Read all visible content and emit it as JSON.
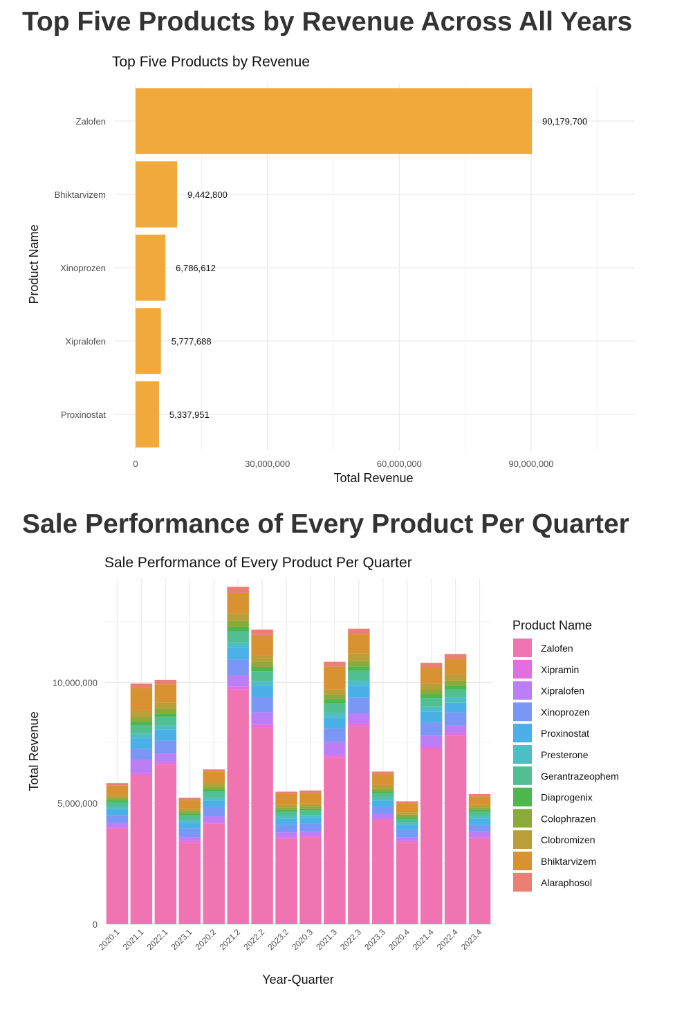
{
  "sections": {
    "top_title": "Top Five Products by Revenue Across All Years",
    "bottom_title": "Sale Performance of Every Product Per Quarter"
  },
  "chart_data": [
    {
      "type": "bar",
      "orientation": "horizontal",
      "title": "Top Five Products by Revenue",
      "xlabel": "Total Revenue",
      "ylabel": "Product Name",
      "categories": [
        "Zalofen",
        "Bhiktarvizem",
        "Xinoprozen",
        "Xipralofen",
        "Proxinostat"
      ],
      "values": [
        90179700,
        9442800,
        6786612,
        5777688,
        5337951
      ],
      "value_labels": [
        "90,179,700",
        "9,442,800",
        "6,786,612",
        "5,777,688",
        "5,337,951"
      ],
      "xlim": [
        0,
        113000000
      ],
      "xticks": [
        0,
        30000000,
        60000000,
        90000000
      ],
      "xtick_labels": [
        "0",
        "30,000,000",
        "60,000,000",
        "90,000,000"
      ],
      "bar_color": "#F2A93B",
      "grid": true
    },
    {
      "type": "bar",
      "stacked": true,
      "title": "Sale Performance of Every Product Per Quarter",
      "xlabel": "Year-Quarter",
      "ylabel": "Total Revenue",
      "legend_title": "Product Name",
      "legend_position": "right",
      "ylim": [
        0,
        14300000
      ],
      "yticks": [
        0,
        5000000,
        10000000
      ],
      "ytick_labels": [
        "0",
        "5,000,000",
        "10,000,000"
      ],
      "grid": true,
      "categories": [
        "2020.1",
        "2021.1",
        "2022.1",
        "2023.1",
        "2020.2",
        "2021.2",
        "2022.2",
        "2023.2",
        "2020.3",
        "2021.3",
        "2022.3",
        "2023.3",
        "2020.4",
        "2021.4",
        "2022.4",
        "2023.4"
      ],
      "series": [
        {
          "name": "Zalofen",
          "color": "#F073B2",
          "values": [
            3950000,
            6150000,
            6600000,
            3400000,
            4150000,
            9700000,
            8150000,
            3550000,
            3600000,
            6900000,
            8200000,
            4300000,
            3400000,
            7250000,
            7800000,
            3550000
          ]
        },
        {
          "name": "Xipramin",
          "color": "#E36EE0",
          "values": [
            50000,
            90000,
            90000,
            50000,
            60000,
            130000,
            110000,
            50000,
            50000,
            90000,
            110000,
            60000,
            50000,
            100000,
            110000,
            50000
          ]
        },
        {
          "name": "Xipralofen",
          "color": "#BB7EF4",
          "values": [
            200000,
            550000,
            350000,
            150000,
            250000,
            450000,
            500000,
            200000,
            200000,
            550000,
            400000,
            200000,
            150000,
            450000,
            300000,
            250000
          ]
        },
        {
          "name": "Xinoprozen",
          "color": "#7B97F5",
          "values": [
            300000,
            450000,
            550000,
            350000,
            400000,
            650000,
            650000,
            300000,
            300000,
            550000,
            650000,
            300000,
            300000,
            550000,
            550000,
            250000
          ]
        },
        {
          "name": "Proxinostat",
          "color": "#4BB0E8",
          "values": [
            250000,
            450000,
            450000,
            250000,
            250000,
            500000,
            450000,
            250000,
            250000,
            450000,
            500000,
            250000,
            200000,
            450000,
            400000,
            250000
          ]
        },
        {
          "name": "Presterone",
          "color": "#4DBEC6",
          "values": [
            100000,
            180000,
            180000,
            100000,
            120000,
            220000,
            200000,
            100000,
            100000,
            200000,
            220000,
            100000,
            100000,
            200000,
            200000,
            100000
          ]
        },
        {
          "name": "Gerantrazeophem",
          "color": "#52BF92",
          "values": [
            200000,
            350000,
            350000,
            200000,
            250000,
            450000,
            400000,
            200000,
            200000,
            400000,
            400000,
            200000,
            150000,
            350000,
            350000,
            200000
          ]
        },
        {
          "name": "Diaprogenix",
          "color": "#4CB74F",
          "values": [
            80000,
            150000,
            150000,
            80000,
            100000,
            200000,
            180000,
            80000,
            80000,
            160000,
            180000,
            90000,
            80000,
            160000,
            160000,
            80000
          ]
        },
        {
          "name": "Colophrazen",
          "color": "#8CAA3A",
          "values": [
            100000,
            200000,
            200000,
            100000,
            120000,
            250000,
            220000,
            100000,
            100000,
            200000,
            230000,
            110000,
            100000,
            200000,
            200000,
            100000
          ]
        },
        {
          "name": "Clobromizen",
          "color": "#BA9F38",
          "values": [
            100000,
            250000,
            250000,
            100000,
            150000,
            300000,
            250000,
            100000,
            100000,
            200000,
            300000,
            150000,
            100000,
            250000,
            250000,
            100000
          ]
        },
        {
          "name": "Bhiktarvizem",
          "color": "#D99231",
          "values": [
            400000,
            950000,
            750000,
            350000,
            450000,
            850000,
            850000,
            450000,
            450000,
            950000,
            800000,
            450000,
            350000,
            650000,
            650000,
            350000
          ]
        },
        {
          "name": "Alaraphosol",
          "color": "#EA7F74",
          "values": [
            100000,
            180000,
            180000,
            100000,
            100000,
            250000,
            220000,
            100000,
            100000,
            200000,
            230000,
            100000,
            100000,
            200000,
            200000,
            100000
          ]
        }
      ]
    }
  ]
}
